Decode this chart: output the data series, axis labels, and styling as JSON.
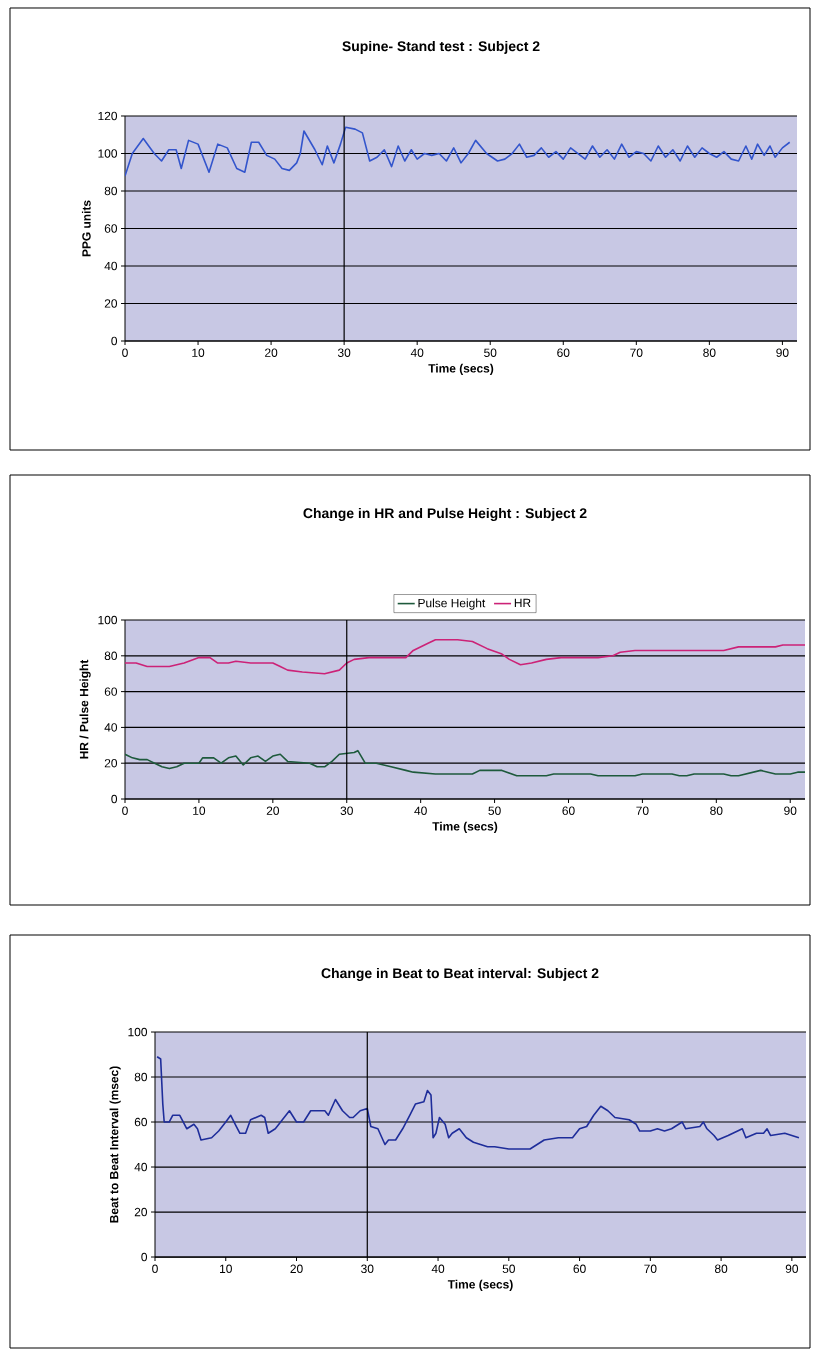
{
  "chart_data": [
    {
      "type": "line",
      "title": "Supine- Stand test : Subject 2",
      "xlabel": "Time (secs)",
      "ylabel": "PPG units",
      "xlim": [
        0,
        92
      ],
      "xticks": [
        0,
        10,
        20,
        30,
        40,
        50,
        60,
        70,
        80,
        90
      ],
      "ylim": [
        0,
        120
      ],
      "yticks": [
        0,
        20,
        40,
        60,
        80,
        100,
        120
      ],
      "grid": "y",
      "legend": false,
      "ref_lines": [
        {
          "axis": "x",
          "value": 30,
          "color": "#000000"
        }
      ],
      "series": [
        {
          "color": "#3355cc",
          "x": [
            0,
            1,
            2.5,
            4,
            5,
            6,
            7,
            7.7,
            8.7,
            10,
            11.5,
            12.7,
            14,
            15.3,
            16.4,
            17.3,
            18.3,
            19.4,
            20.5,
            21.5,
            22.5,
            23.5,
            24,
            24.5,
            26,
            27,
            27.7,
            28.6,
            29.5,
            30.2,
            31.5,
            32.5,
            33.5,
            34.5,
            35.5,
            36.5,
            37.4,
            38.3,
            39.2,
            40,
            41,
            42,
            43,
            44,
            45,
            46,
            47,
            48,
            49.5,
            51,
            52,
            53,
            54,
            55,
            56,
            57,
            58,
            59,
            60,
            61,
            62,
            63,
            64,
            65,
            66,
            67,
            68,
            69,
            70,
            71,
            72,
            73,
            74,
            75,
            76,
            77,
            78,
            79,
            80,
            81,
            82,
            83,
            84,
            85,
            85.8,
            86.6,
            87.5,
            88.3,
            89,
            90,
            91
          ],
          "values": [
            88,
            100,
            108,
            100,
            96,
            102,
            102,
            92,
            107,
            105,
            90,
            105,
            103,
            92,
            90,
            106,
            106,
            99,
            97,
            92,
            91,
            95,
            100,
            112,
            102,
            94,
            104,
            95,
            105,
            114,
            113,
            111,
            96,
            98,
            102,
            93,
            104,
            96,
            102,
            97,
            100,
            99,
            100,
            96,
            103,
            95,
            100,
            107,
            100,
            96,
            97,
            100,
            105,
            98,
            99,
            103,
            98,
            101,
            97,
            103,
            100,
            97,
            104,
            98,
            102,
            97,
            105,
            98,
            101,
            100,
            96,
            104,
            98,
            102,
            96,
            104,
            98,
            103,
            100,
            98,
            101,
            97,
            96,
            104,
            97,
            105,
            99,
            104,
            98,
            103,
            106
          ]
        }
      ]
    },
    {
      "type": "line",
      "title": "Change in HR and Pulse Height : Subject 2",
      "xlabel": "Time (secs)",
      "ylabel": "HR / Pulse Height",
      "xlim": [
        0,
        92
      ],
      "xticks": [
        0,
        10,
        20,
        30,
        40,
        50,
        60,
        70,
        80,
        90
      ],
      "ylim": [
        0,
        100
      ],
      "yticks": [
        0,
        20,
        40,
        60,
        80,
        100
      ],
      "grid": "y",
      "legend": "top",
      "ref_lines": [
        {
          "axis": "x",
          "value": 30,
          "color": "#000000"
        }
      ],
      "series": [
        {
          "name": "Pulse Height",
          "color": "#1e5a3c",
          "x": [
            0,
            1,
            2,
            3,
            5,
            6,
            7,
            8,
            9,
            10,
            10.5,
            12,
            13,
            14,
            15,
            16,
            17,
            18,
            19,
            20,
            21,
            22,
            25,
            26,
            27,
            28,
            29,
            31,
            31.5,
            32.5,
            34,
            35,
            36,
            38,
            39,
            42,
            47,
            48,
            51,
            53,
            57,
            58,
            63,
            64,
            69,
            70,
            74,
            75,
            76,
            77,
            81,
            82,
            83,
            84,
            85,
            86,
            87,
            88,
            90,
            91,
            92
          ],
          "values": [
            25,
            23,
            22,
            22,
            18,
            17,
            18,
            20,
            20,
            20,
            23,
            23,
            20,
            23,
            24,
            19,
            23,
            24,
            21,
            24,
            25,
            21,
            20,
            18,
            18,
            21,
            25,
            26,
            27,
            20,
            20,
            19,
            18,
            16,
            15,
            14,
            14,
            16,
            16,
            13,
            13,
            14,
            14,
            13,
            13,
            14,
            14,
            13,
            13,
            14,
            14,
            13,
            13,
            14,
            15,
            16,
            15,
            14,
            14,
            15,
            15
          ]
        },
        {
          "name": "HR",
          "color": "#cc2277",
          "x": [
            0,
            1.5,
            3,
            6,
            8,
            10,
            11.5,
            12.5,
            14,
            15,
            17,
            20,
            21,
            22,
            24,
            27,
            29,
            30,
            31,
            33,
            36,
            38,
            39,
            41,
            42,
            45,
            47,
            49,
            51,
            52,
            53.5,
            55,
            57,
            59,
            64,
            66,
            67,
            69,
            81,
            83,
            88,
            89,
            92
          ],
          "values": [
            76,
            76,
            74,
            74,
            76,
            79,
            79,
            76,
            76,
            77,
            76,
            76,
            74,
            72,
            71,
            70,
            72,
            76,
            78,
            79,
            79,
            79,
            83,
            87,
            89,
            89,
            88,
            84,
            81,
            78,
            75,
            76,
            78,
            79,
            79,
            80,
            82,
            83,
            83,
            85,
            85,
            86,
            86
          ]
        }
      ]
    },
    {
      "type": "line",
      "title": "Change in Beat to Beat interval: Subject 2",
      "xlabel": "Time (secs)",
      "ylabel": "Beat to Beat Interval (msec)",
      "xlim": [
        0,
        92
      ],
      "xticks": [
        0,
        10,
        20,
        30,
        40,
        50,
        60,
        70,
        80,
        90
      ],
      "ylim": [
        0,
        100
      ],
      "yticks": [
        0,
        20,
        40,
        60,
        80,
        100
      ],
      "grid": "y",
      "legend": false,
      "ref_lines": [
        {
          "axis": "x",
          "value": 30,
          "color": "#000000"
        }
      ],
      "series": [
        {
          "color": "#1e2d9a",
          "x": [
            0.3,
            0.8,
            1.1,
            1.3,
            2,
            2.5,
            3.5,
            4.5,
            5.5,
            6,
            6.5,
            8,
            9,
            10,
            10.7,
            11.5,
            12,
            12.8,
            13.5,
            15,
            15.5,
            16,
            17,
            18,
            19,
            20,
            21,
            22,
            24,
            24.5,
            25.5,
            26.5,
            27.5,
            28,
            29,
            30,
            30.5,
            31.5,
            32.5,
            33,
            34,
            35,
            36,
            36.8,
            38,
            38.5,
            39,
            39.3,
            39.7,
            40.2,
            41,
            41.5,
            42,
            43,
            44,
            45,
            46,
            47,
            48,
            50,
            53,
            54,
            55,
            57,
            59,
            59.5,
            60,
            61,
            62,
            63,
            64,
            65,
            67,
            68,
            68.5,
            70,
            71,
            72,
            73,
            74,
            74.5,
            75,
            77,
            77.5,
            78,
            79,
            79.5,
            81,
            83,
            83.5,
            85,
            86,
            86.5,
            87,
            89,
            90,
            91
          ],
          "values": [
            89,
            88,
            68,
            60,
            60,
            63,
            63,
            57,
            59,
            57,
            52,
            53,
            56,
            60,
            63,
            58,
            55,
            55,
            61,
            63,
            62,
            55,
            57,
            61,
            65,
            60,
            60,
            65,
            65,
            63,
            70,
            65,
            62,
            62,
            65,
            66,
            58,
            57,
            50,
            52,
            52,
            57,
            63,
            68,
            69,
            74,
            72,
            53,
            55,
            62,
            59,
            53,
            55,
            57,
            53,
            51,
            50,
            49,
            49,
            48,
            48,
            50,
            52,
            53,
            53,
            55,
            57,
            58,
            63,
            67,
            65,
            62,
            61,
            59,
            56,
            56,
            57,
            56,
            57,
            59,
            60,
            57,
            58,
            60,
            57,
            54,
            52,
            54,
            57,
            53,
            55,
            55,
            57,
            54,
            55,
            54,
            53
          ]
        }
      ]
    }
  ]
}
